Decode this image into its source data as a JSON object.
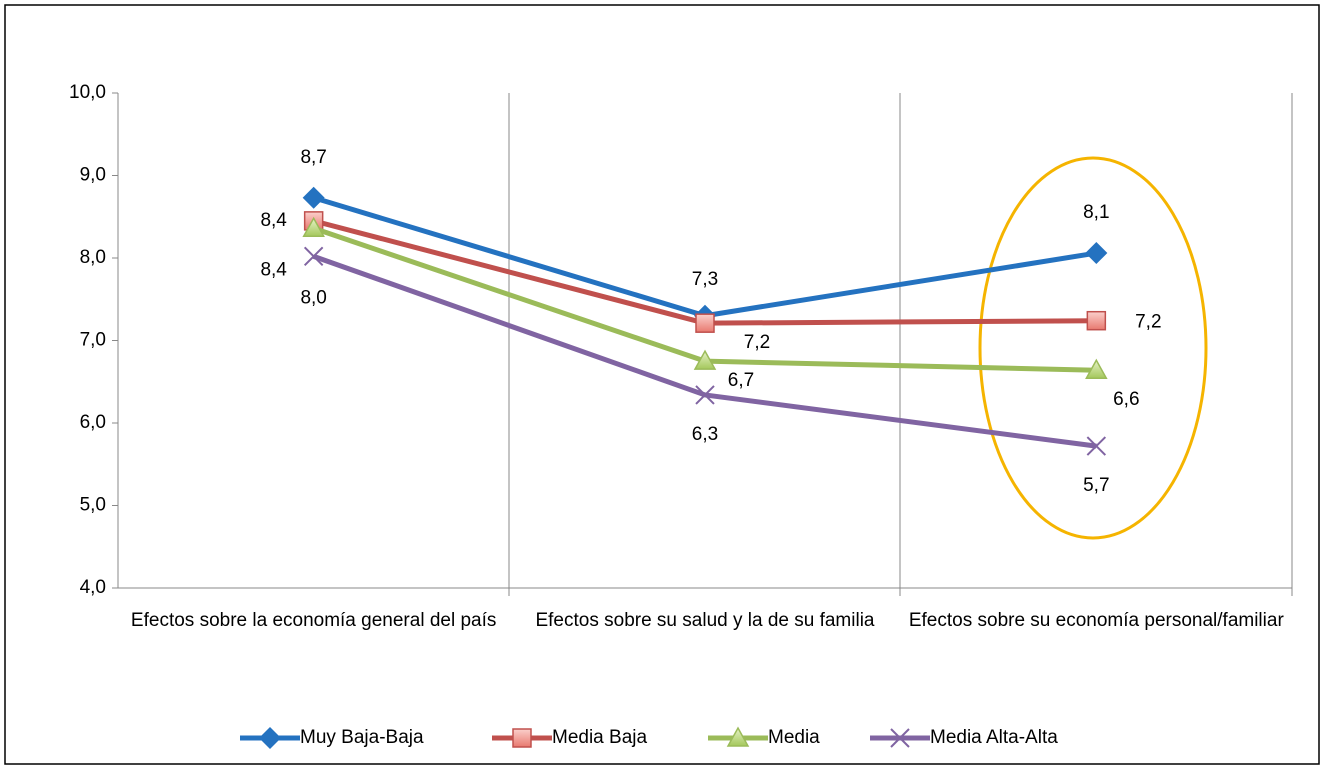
{
  "chart_data": {
    "type": "line",
    "categories": [
      "Efectos sobre la economía general del país",
      "Efectos sobre su salud y la de su familia",
      "Efectos sobre su economía personal/familiar"
    ],
    "series": [
      {
        "name": "Muy Baja-Baja",
        "color": "#2472c0",
        "marker": "diamond",
        "values": [
          8.73,
          7.3,
          8.06
        ],
        "value_labels": [
          "8,7",
          "7,3",
          "8,1"
        ]
      },
      {
        "name": "Media Baja",
        "color": "#c0504d",
        "marker": "square",
        "values": [
          8.45,
          7.21,
          7.24
        ],
        "value_labels": [
          "8,4",
          "7,2",
          "7,2"
        ]
      },
      {
        "name": "Media",
        "color": "#9bbb59",
        "marker": "triangle",
        "values": [
          8.36,
          6.75,
          6.64
        ],
        "value_labels": [
          "8,4",
          "6,7",
          "6,6"
        ]
      },
      {
        "name": "Media Alta-Alta",
        "color": "#8064a2",
        "marker": "x",
        "values": [
          8.02,
          6.34,
          5.72
        ],
        "value_labels": [
          "8,0",
          "6,3",
          "5,7"
        ]
      }
    ],
    "ylim": [
      4,
      10
    ],
    "yticks": [
      {
        "value": 4,
        "label": "4,0"
      },
      {
        "value": 5,
        "label": "5,0"
      },
      {
        "value": 6,
        "label": "6,0"
      },
      {
        "value": 7,
        "label": "7,0"
      },
      {
        "value": 8,
        "label": "8,0"
      },
      {
        "value": 9,
        "label": "9,0"
      },
      {
        "value": 10,
        "label": "10,0"
      }
    ],
    "legend": "bottom"
  }
}
